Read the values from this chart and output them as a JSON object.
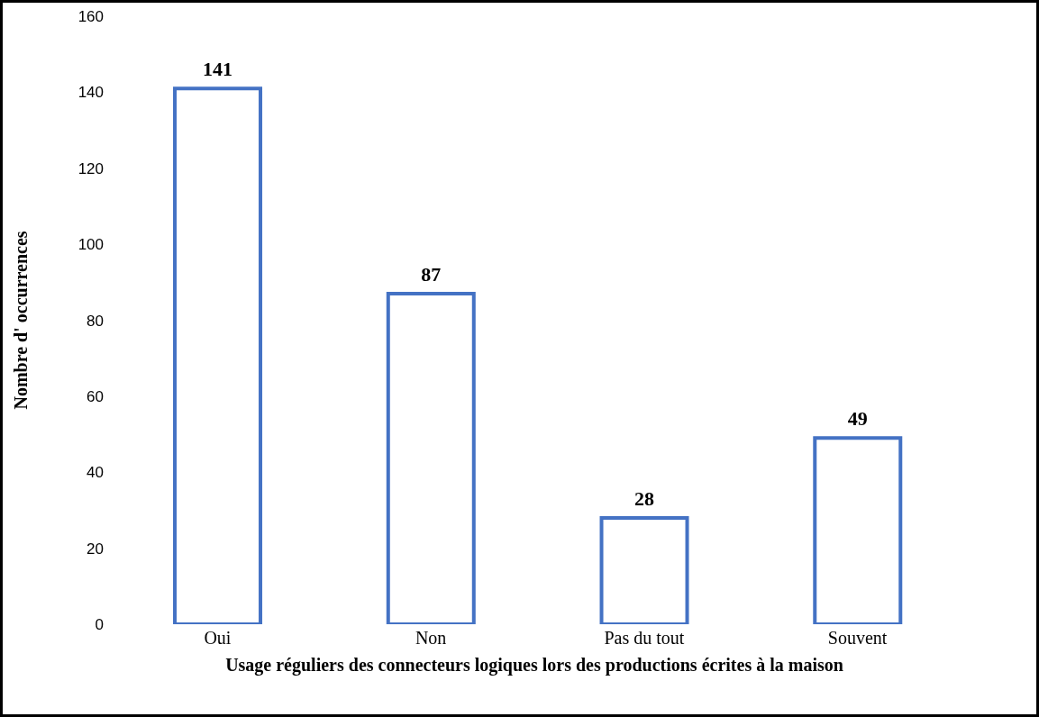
{
  "chart_data": {
    "type": "bar",
    "xlabel": "Usage réguliers des connecteurs logiques lors des productions écrites à la maison",
    "ylabel": "Nombre d' occurrences",
    "categories": [
      "Oui",
      "Non",
      "Pas du tout",
      "Souvent"
    ],
    "values": [
      141,
      87,
      28,
      49
    ],
    "color": "#4472c4",
    "ylim": [
      0,
      160
    ],
    "yticks": [
      0,
      20,
      40,
      60,
      80,
      100,
      120,
      140,
      160
    ],
    "grid": false,
    "data_labels": true
  }
}
